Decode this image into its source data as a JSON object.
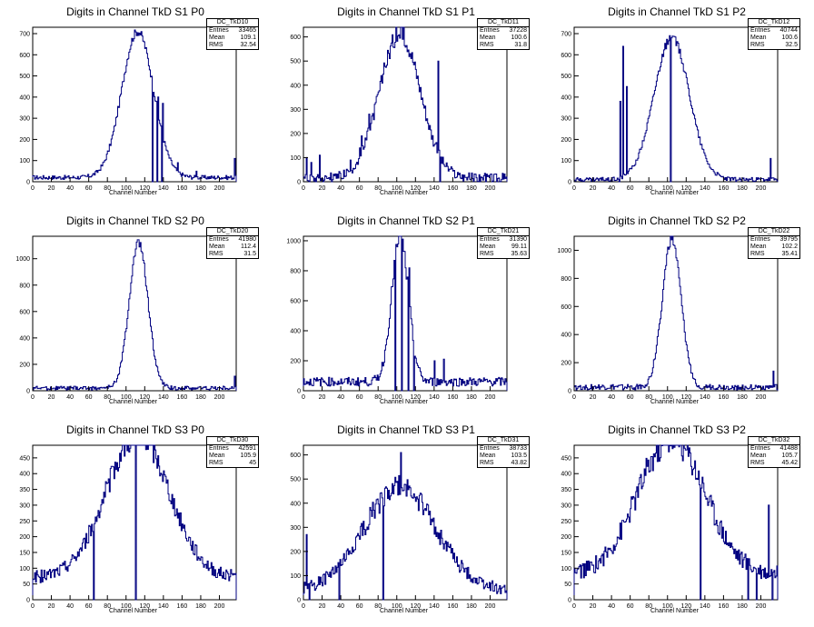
{
  "common": {
    "xlabel": "Channel Number",
    "line_color": "#000080",
    "stat_labels": [
      "Entries",
      "Mean",
      "RMS"
    ]
  },
  "chart_data": [
    {
      "type": "line",
      "title": "Digits in Channel TkD S1 P0",
      "xlabel": "Channel Number",
      "ylabel": "",
      "xlim": [
        0,
        218
      ],
      "ylim": [
        0,
        730
      ],
      "x_ticks": [
        0,
        20,
        40,
        60,
        80,
        100,
        120,
        140,
        160,
        180,
        200
      ],
      "y_ticks": [
        0,
        100,
        200,
        300,
        400,
        500,
        600,
        700
      ],
      "stats": {
        "name": "DC_TkD10",
        "entries": "33465",
        "mean": "109.1",
        "rms": "32.54"
      },
      "peak": 112,
      "width": 17,
      "height": 690,
      "base": 20,
      "noise": 10,
      "spikes": [
        [
          128,
          0
        ],
        [
          133,
          0
        ],
        [
          134,
          400
        ],
        [
          138,
          0
        ],
        [
          139,
          370
        ],
        [
          155,
          90
        ],
        [
          175,
          50
        ],
        [
          200,
          15
        ],
        [
          216,
          110
        ]
      ]
    },
    {
      "type": "line",
      "title": "Digits in Channel TkD S1 P1",
      "xlabel": "Channel Number",
      "ylabel": "",
      "xlim": [
        0,
        218
      ],
      "ylim": [
        0,
        640
      ],
      "x_ticks": [
        0,
        20,
        40,
        60,
        80,
        100,
        120,
        140,
        160,
        180,
        200
      ],
      "y_ticks": [
        0,
        100,
        200,
        300,
        400,
        500,
        600
      ],
      "stats": {
        "name": "DC_TkD11",
        "entries": "37228",
        "mean": "100.6",
        "rms": "31.8"
      },
      "peak": 103,
      "width": 22,
      "height": 600,
      "base": 15,
      "noise": 20,
      "spikes": [
        [
          3,
          100
        ],
        [
          8,
          80
        ],
        [
          17,
          110
        ],
        [
          50,
          90
        ],
        [
          60,
          140
        ],
        [
          62,
          190
        ],
        [
          70,
          280
        ],
        [
          103,
          595
        ],
        [
          144,
          500
        ],
        [
          146,
          0
        ]
      ]
    },
    {
      "type": "line",
      "title": "Digits in Channel TkD S1 P2",
      "xlabel": "Channel Number",
      "ylabel": "",
      "xlim": [
        0,
        218
      ],
      "ylim": [
        0,
        730
      ],
      "x_ticks": [
        0,
        20,
        40,
        60,
        80,
        100,
        120,
        140,
        160,
        180,
        200
      ],
      "y_ticks": [
        0,
        100,
        200,
        300,
        400,
        500,
        600,
        700
      ],
      "stats": {
        "name": "DC_TkD12",
        "entries": "40744",
        "mean": "100.6",
        "rms": "32.5"
      },
      "peak": 104,
      "width": 19,
      "height": 670,
      "base": 10,
      "noise": 10,
      "spikes": [
        [
          48,
          0
        ],
        [
          49,
          380
        ],
        [
          52,
          640
        ],
        [
          56,
          450
        ],
        [
          103,
          0
        ],
        [
          185,
          10
        ],
        [
          210,
          110
        ]
      ]
    },
    {
      "type": "line",
      "title": "Digits in Channel TkD S2 P0",
      "xlabel": "Channel Number",
      "ylabel": "",
      "xlim": [
        0,
        218
      ],
      "ylim": [
        0,
        1170
      ],
      "x_ticks": [
        0,
        20,
        40,
        60,
        80,
        100,
        120,
        140,
        160,
        180,
        200
      ],
      "y_ticks": [
        0,
        200,
        400,
        600,
        800,
        1000
      ],
      "stats": {
        "name": "DC_TkD20",
        "entries": "41980",
        "mean": "112.4",
        "rms": "31.5"
      },
      "peak": 113,
      "width": 10,
      "height": 1100,
      "base": 20,
      "noise": 15,
      "spikes": [
        [
          216,
          110
        ]
      ]
    },
    {
      "type": "line",
      "title": "Digits in Channel TkD S2 P1",
      "xlabel": "Channel Number",
      "ylabel": "",
      "xlim": [
        0,
        218
      ],
      "ylim": [
        0,
        1030
      ],
      "x_ticks": [
        0,
        20,
        40,
        60,
        80,
        100,
        120,
        140,
        160,
        180,
        200
      ],
      "y_ticks": [
        0,
        200,
        400,
        600,
        800,
        1000
      ],
      "stats": {
        "name": "DC_TkD21",
        "entries": "31390",
        "mean": "99.11",
        "rms": "35.63"
      },
      "peak": 103,
      "width": 9,
      "height": 970,
      "base": 60,
      "noise": 30,
      "spikes": [
        [
          98,
          0
        ],
        [
          100,
          960
        ],
        [
          105,
          0
        ],
        [
          107,
          930
        ],
        [
          112,
          0
        ],
        [
          113,
          820
        ],
        [
          118,
          0
        ],
        [
          140,
          200
        ],
        [
          150,
          210
        ]
      ]
    },
    {
      "type": "line",
      "title": "Digits in Channel TkD S2 P2",
      "xlabel": "Channel Number",
      "ylabel": "",
      "xlim": [
        0,
        218
      ],
      "ylim": [
        0,
        1100
      ],
      "x_ticks": [
        0,
        20,
        40,
        60,
        80,
        100,
        120,
        140,
        160,
        180,
        200
      ],
      "y_ticks": [
        0,
        200,
        400,
        600,
        800,
        1000
      ],
      "stats": {
        "name": "DC_TkD22",
        "entries": "39795",
        "mean": "102.2",
        "rms": "35.41"
      },
      "peak": 104,
      "width": 10,
      "height": 1050,
      "base": 25,
      "noise": 20,
      "spikes": [
        [
          213,
          140
        ]
      ]
    },
    {
      "type": "line",
      "title": "Digits in Channel TkD S3 P0",
      "xlabel": "Channel Number",
      "ylabel": "",
      "xlim": [
        0,
        218
      ],
      "ylim": [
        0,
        490
      ],
      "x_ticks": [
        0,
        20,
        40,
        60,
        80,
        100,
        120,
        140,
        160,
        180,
        200
      ],
      "y_ticks": [
        0,
        50,
        100,
        150,
        200,
        250,
        300,
        350,
        400,
        450
      ],
      "stats": {
        "name": "DC_TkD30",
        "entries": "42591",
        "mean": "105.9",
        "rms": "45"
      },
      "peak": 112,
      "width": 34,
      "height": 450,
      "base": 70,
      "noise": 20,
      "spikes": [
        [
          65,
          0
        ],
        [
          110,
          0
        ],
        [
          216,
          80
        ]
      ]
    },
    {
      "type": "line",
      "title": "Digits in Channel TkD S3 P1",
      "xlabel": "Channel Number",
      "ylabel": "",
      "xlim": [
        0,
        218
      ],
      "ylim": [
        0,
        640
      ],
      "x_ticks": [
        0,
        20,
        40,
        60,
        80,
        100,
        120,
        140,
        160,
        180,
        200
      ],
      "y_ticks": [
        0,
        100,
        200,
        300,
        400,
        500,
        600
      ],
      "stats": {
        "name": "DC_TkD31",
        "entries": "38733",
        "mean": "103.5",
        "rms": "43.82"
      },
      "peak": 103,
      "width": 38,
      "height": 430,
      "base": 40,
      "noise": 25,
      "spikes": [
        [
          3,
          270
        ],
        [
          6,
          0
        ],
        [
          38,
          0
        ],
        [
          85,
          0
        ],
        [
          104,
          610
        ],
        [
          215,
          60
        ]
      ]
    },
    {
      "type": "line",
      "title": "Digits in Channel TkD S3 P2",
      "xlabel": "Channel Number",
      "ylabel": "",
      "xlim": [
        0,
        218
      ],
      "ylim": [
        0,
        490
      ],
      "x_ticks": [
        0,
        20,
        40,
        60,
        80,
        100,
        120,
        140,
        160,
        180,
        200
      ],
      "y_ticks": [
        0,
        50,
        100,
        150,
        200,
        250,
        300,
        350,
        400,
        450
      ],
      "stats": {
        "name": "DC_TkD32",
        "entries": "41488",
        "mean": "105.7",
        "rms": "45.42"
      },
      "peak": 104,
      "width": 36,
      "height": 430,
      "base": 80,
      "noise": 25,
      "spikes": [
        [
          135,
          0
        ],
        [
          186,
          0
        ],
        [
          195,
          0
        ],
        [
          208,
          300
        ],
        [
          212,
          0
        ]
      ]
    }
  ]
}
